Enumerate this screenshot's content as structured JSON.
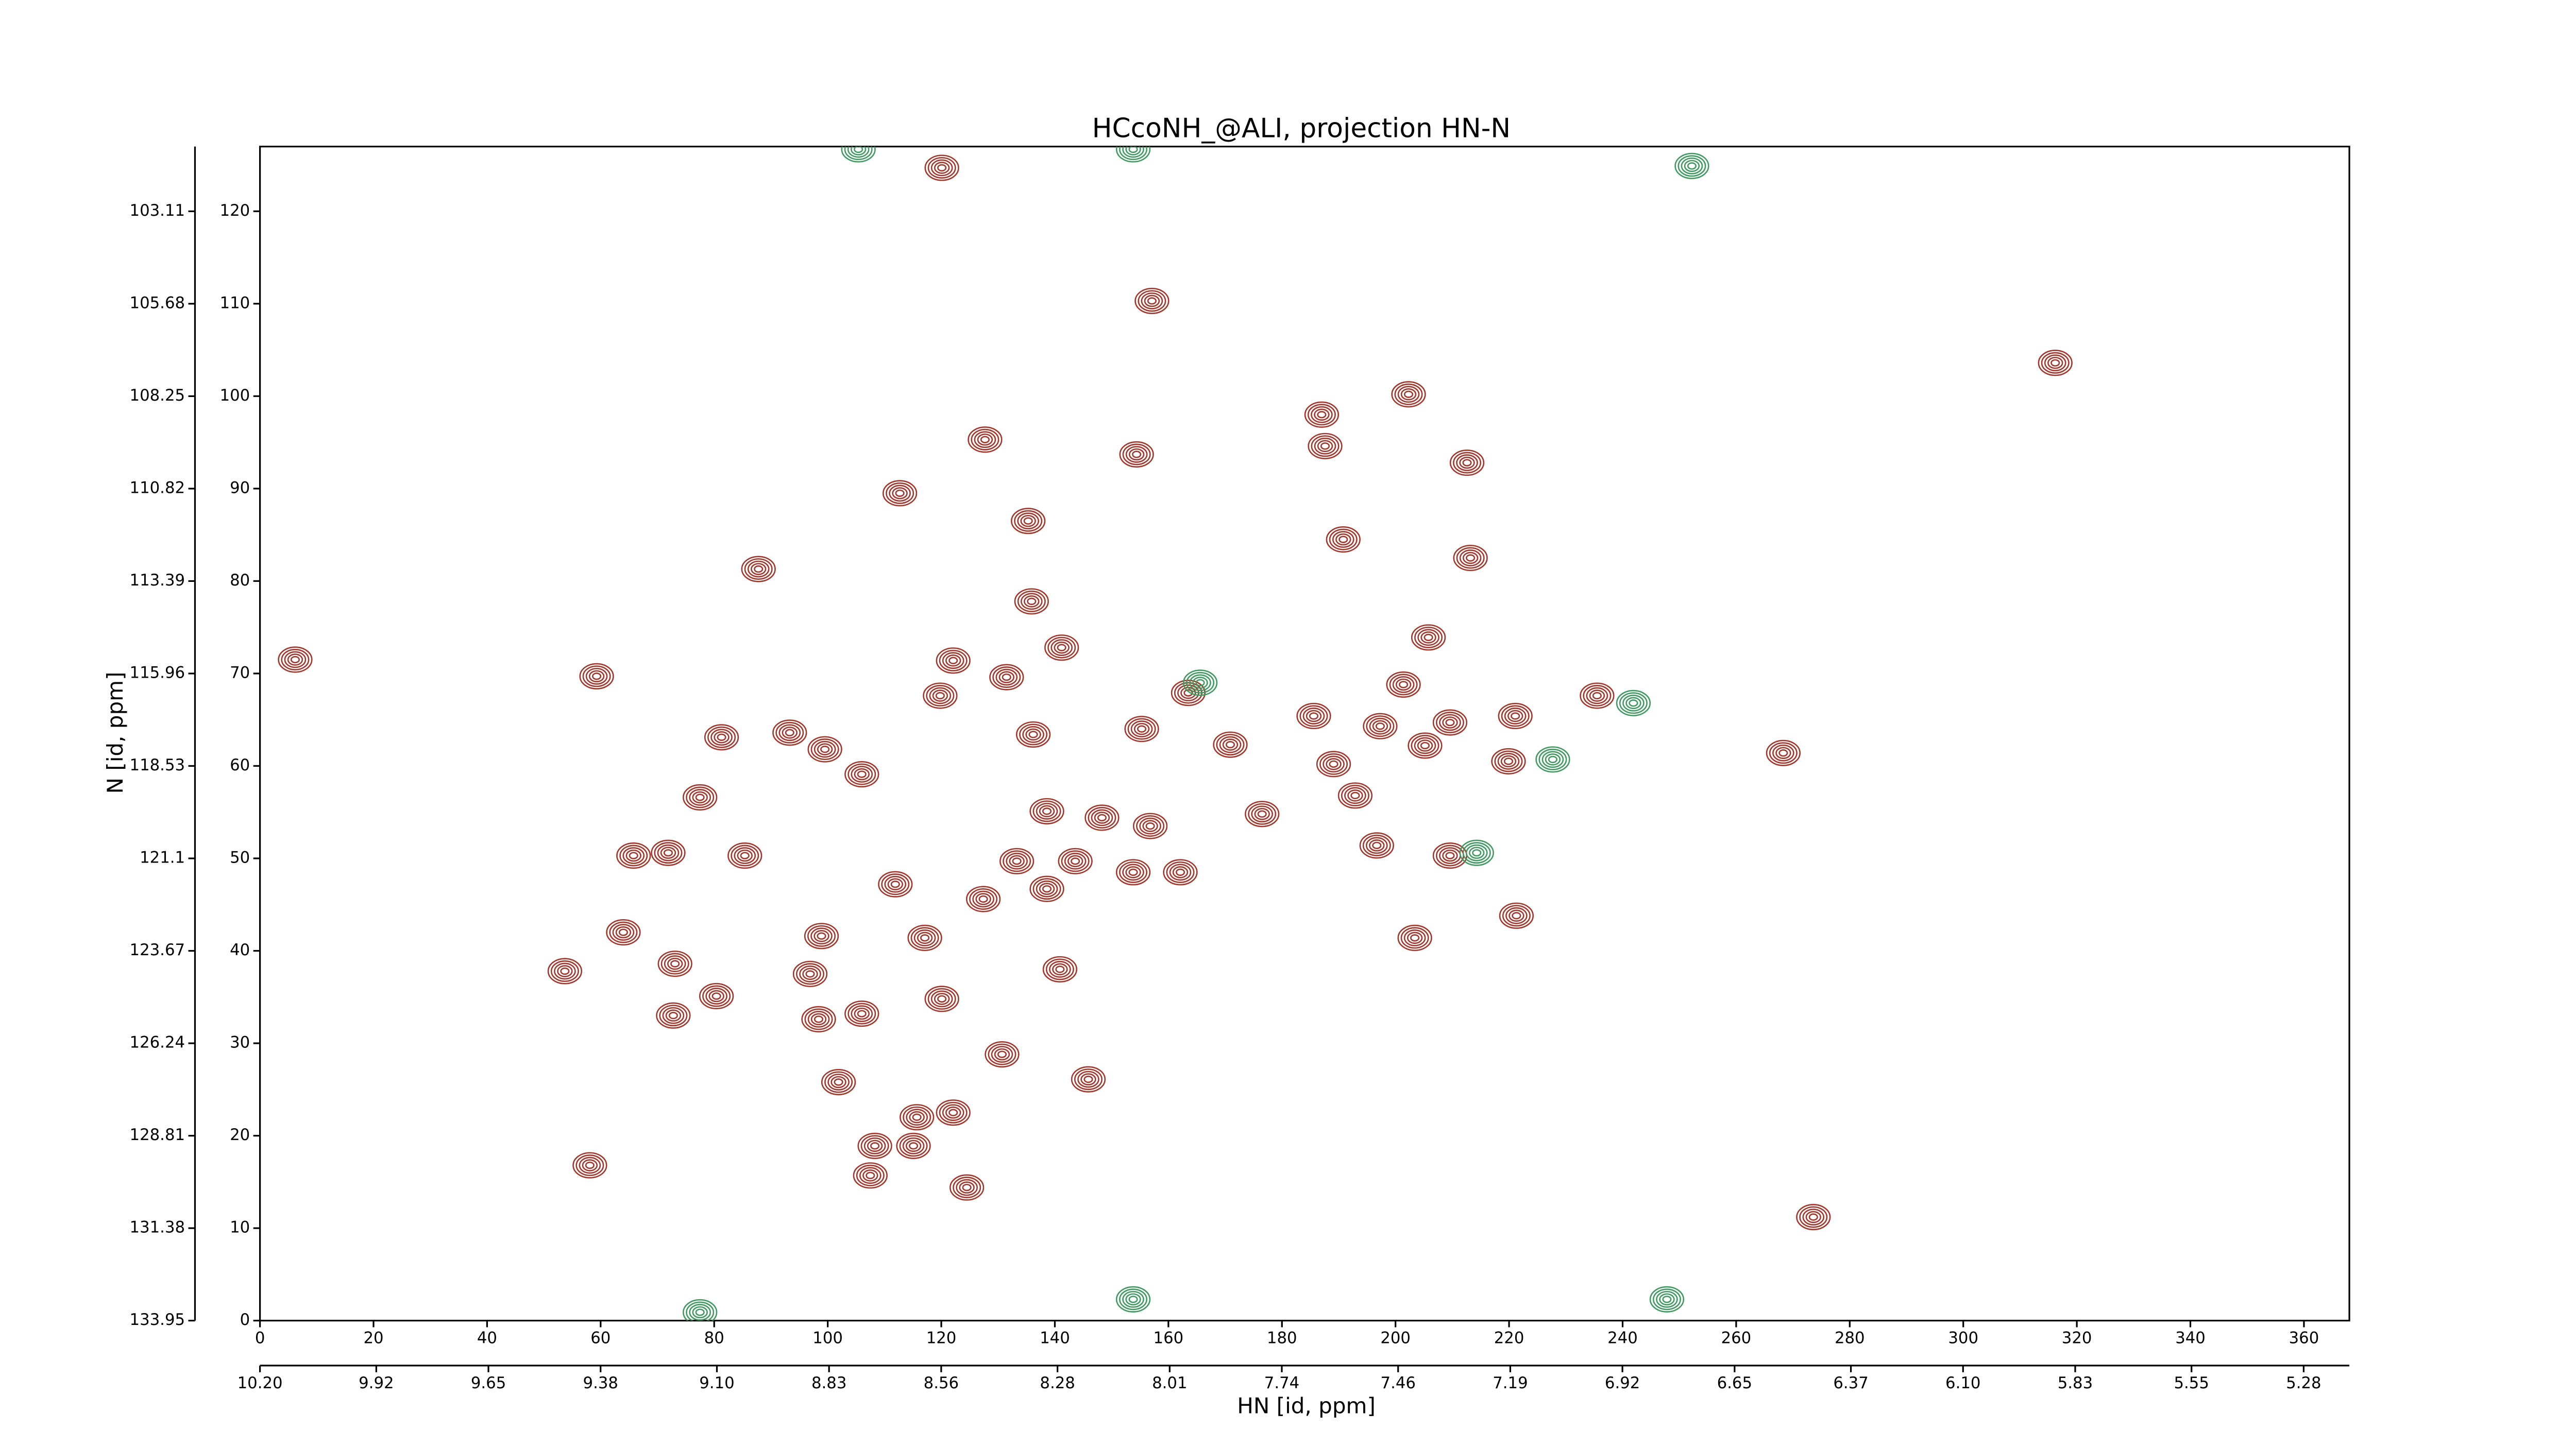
{
  "chart_data": {
    "type": "contour",
    "title": "HCcoNH_@ALI, projection HN-N",
    "xlabel": "HN [id, ppm]",
    "ylabel": "N [id, ppm]",
    "xlim": [
      0,
      368
    ],
    "ylim": [
      0,
      127
    ],
    "xticks": [
      0,
      20,
      40,
      60,
      80,
      100,
      120,
      140,
      160,
      180,
      200,
      220,
      240,
      260,
      280,
      300,
      320,
      340,
      360
    ],
    "yticks": [
      0,
      10,
      20,
      30,
      40,
      50,
      60,
      70,
      80,
      90,
      100,
      110,
      120
    ],
    "x2lim": [
      10.2,
      5.17
    ],
    "x2ticks": [
      {
        "value": 10.2,
        "label": "10.20"
      },
      {
        "value": 9.92,
        "label": "9.92"
      },
      {
        "value": 9.65,
        "label": "9.65"
      },
      {
        "value": 9.38,
        "label": "9.38"
      },
      {
        "value": 9.1,
        "label": "9.10"
      },
      {
        "value": 8.83,
        "label": "8.83"
      },
      {
        "value": 8.56,
        "label": "8.56"
      },
      {
        "value": 8.28,
        "label": "8.28"
      },
      {
        "value": 8.01,
        "label": "8.01"
      },
      {
        "value": 7.74,
        "label": "7.74"
      },
      {
        "value": 7.46,
        "label": "7.46"
      },
      {
        "value": 7.19,
        "label": "7.19"
      },
      {
        "value": 6.92,
        "label": "6.92"
      },
      {
        "value": 6.65,
        "label": "6.65"
      },
      {
        "value": 6.37,
        "label": "6.37"
      },
      {
        "value": 6.1,
        "label": "6.10"
      },
      {
        "value": 5.83,
        "label": "5.83"
      },
      {
        "value": 5.55,
        "label": "5.55"
      },
      {
        "value": 5.28,
        "label": "5.28"
      }
    ],
    "y2lim": [
      133.95,
      101.31
    ],
    "y2ticks": [
      133.95,
      131.38,
      128.81,
      126.24,
      123.67,
      121.1,
      118.53,
      115.96,
      113.39,
      110.82,
      108.25,
      105.68,
      103.11
    ],
    "series": [
      {
        "color": "#a3362b",
        "x": [
          6.2,
          120.1,
          157.1,
          316.2,
          127.7,
          154.4,
          187.0,
          187.6,
          212.6,
          202.3,
          112.7,
          135.3,
          190.8,
          213.2,
          87.8,
          135.9,
          205.8,
          141.2,
          122.1,
          131.5,
          59.3,
          119.8,
          163.5,
          201.4,
          235.5,
          185.6,
          221.1,
          136.2,
          155.3,
          81.3,
          93.3,
          99.5,
          170.9,
          197.3,
          209.6,
          205.2,
          219.9,
          268.3,
          106.0,
          189.1,
          77.5,
          192.9,
          138.6,
          148.3,
          176.5,
          156.8,
          71.9,
          65.8,
          85.4,
          133.3,
          143.6,
          153.8,
          162.1,
          196.7,
          209.6,
          111.9,
          127.4,
          138.6,
          221.3,
          64.0,
          117.1,
          203.4,
          98.9,
          73.1,
          53.7,
          96.9,
          140.9,
          80.4,
          120.1,
          72.8,
          98.4,
          106.0,
          130.7,
          145.9,
          101.9,
          122.1,
          115.7,
          108.3,
          115.1,
          58.1,
          107.5,
          124.5,
          273.6
        ],
        "values": [
          71.5,
          124.7,
          110.3,
          103.6,
          95.3,
          93.7,
          98.0,
          94.6,
          92.8,
          100.2,
          89.5,
          86.5,
          84.5,
          82.5,
          81.3,
          77.8,
          73.9,
          72.8,
          71.4,
          69.6,
          69.7,
          67.6,
          67.9,
          68.8,
          67.6,
          65.4,
          65.4,
          63.4,
          64.0,
          63.1,
          63.6,
          61.8,
          62.3,
          64.3,
          64.7,
          62.2,
          60.5,
          61.4,
          59.1,
          60.2,
          56.6,
          56.8,
          55.1,
          54.4,
          54.8,
          53.5,
          50.6,
          50.3,
          50.3,
          49.7,
          49.7,
          48.5,
          48.5,
          51.4,
          50.3,
          47.2,
          45.6,
          46.7,
          43.8,
          42.0,
          41.4,
          41.4,
          41.6,
          38.6,
          37.8,
          37.5,
          38.0,
          35.1,
          34.8,
          33.0,
          32.6,
          33.2,
          28.8,
          26.1,
          25.8,
          22.5,
          22.0,
          18.9,
          18.9,
          16.8,
          15.7,
          14.4,
          11.2
        ]
      },
      {
        "color": "#3f9a5f",
        "x": [
          105.4,
          153.8,
          252.2,
          165.6,
          241.9,
          227.7,
          214.3,
          77.5,
          153.8,
          247.8
        ],
        "values": [
          126.7,
          126.7,
          124.9,
          69.0,
          66.8,
          60.7,
          50.6,
          0.9,
          2.3,
          2.3
        ]
      }
    ]
  }
}
